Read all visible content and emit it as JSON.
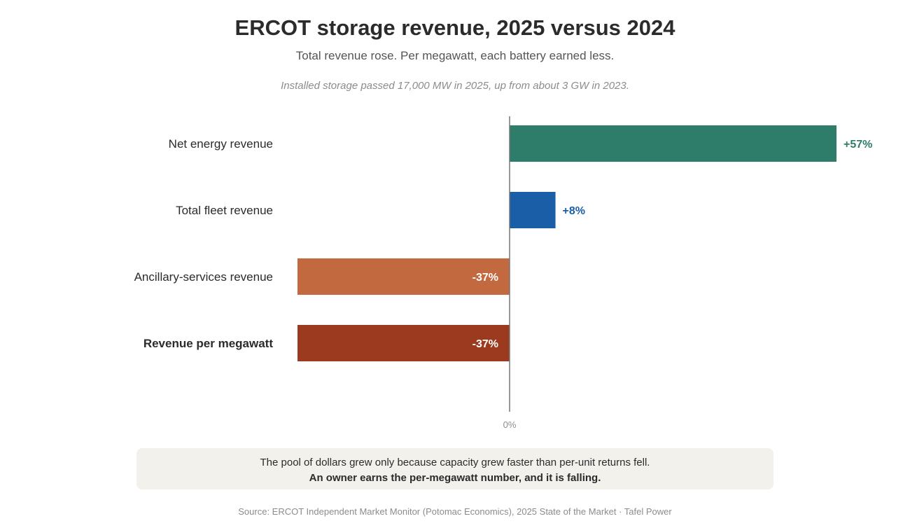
{
  "header": {
    "title": "ERCOT storage revenue, 2025 versus 2024",
    "subtitle": "Total revenue rose. Per megawatt, each battery earned less.",
    "note": "Installed storage passed 17,000 MW in 2025, up from about 3 GW in 2023."
  },
  "chart_data": {
    "type": "bar",
    "orientation": "horizontal",
    "categories": [
      "Net energy revenue",
      "Total fleet revenue",
      "Ancillary-services revenue",
      "Revenue per megawatt"
    ],
    "values": [
      57,
      8,
      -37,
      -37
    ],
    "value_labels": [
      "+57%",
      "+8%",
      "-37%",
      "-37%"
    ],
    "colors": [
      "#2e7d6b",
      "#1a5ea8",
      "#c2693f",
      "#9b3a1e"
    ],
    "emphasized_category": "Revenue per megawatt",
    "zero_label": "0%",
    "xlim": [
      -37,
      57
    ],
    "grid": false,
    "legend": "none"
  },
  "callout": {
    "line1": "The pool of dollars grew only because capacity grew faster than per-unit returns fell.",
    "line2": "An owner earns the per-megawatt number, and it is falling."
  },
  "footer": {
    "source": "Source: ERCOT Independent Market Monitor (Potomac Economics), 2025 State of the Market · Tafel Power"
  }
}
